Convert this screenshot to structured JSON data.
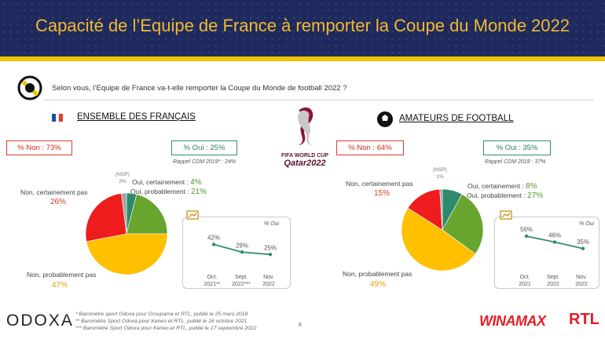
{
  "header": {
    "title": "Capacité de l’Equipe de France à remporter la Coupe du Monde 2022"
  },
  "question": "Selon vous, l’Equipe de France va-t-elle remporter la Coupe du Monde de football 2022 ?",
  "logo_text": "FIFA WORLD CUP\nQatar2022",
  "panels": [
    {
      "title": "ENSEMBLE DES FRANÇAIS",
      "non_box": "% Non : 73%",
      "oui_box": "% Oui : 25%",
      "rappel": "Rappel CDM 2018* : 24%",
      "nsp_label": "(NSP)",
      "nsp_value": "2%",
      "cert_oui_label": "Oui, certainement : ",
      "cert_oui_value": "4%",
      "prob_oui_label": "Oui, probablement : ",
      "prob_oui_value": "21%",
      "cert_non_label": "Non, certainement pas",
      "cert_non_value": "26%",
      "prob_non_label": "Non, probablement pas",
      "prob_non_value": "47%",
      "trend_legend": "% Oui",
      "trend_ticks": [
        [
          "Oct.",
          "2021**"
        ],
        [
          "Sept.",
          "2022***"
        ],
        [
          "Nov.",
          "2022"
        ]
      ],
      "trend_labels": [
        "42%",
        "29%",
        "25%"
      ]
    },
    {
      "title": "AMATEURS DE FOOTBALL",
      "non_box": "% Non : 64%",
      "oui_box": "% Oui : 35%",
      "rappel": "Rappel CDM 2018 : 37%",
      "nsp_label": "(NSP)",
      "nsp_value": "1%",
      "cert_oui_label": "Oui, certainement : ",
      "cert_oui_value": "8%",
      "prob_oui_label": "Oui, probablement : ",
      "prob_oui_value": "27%",
      "cert_non_label": "Non, certainement pas",
      "cert_non_value": "15%",
      "prob_non_label": "Non, probablement pas",
      "prob_non_value": "49%",
      "trend_legend": "% Oui",
      "trend_ticks": [
        [
          "Oct.",
          "2021"
        ],
        [
          "Sept.",
          "2022"
        ],
        [
          "Nov.",
          "2022"
        ]
      ],
      "trend_labels": [
        "56%",
        "46%",
        "35%"
      ]
    }
  ],
  "chart_data": [
    {
      "type": "pie",
      "categories": [
        "Oui, certainement",
        "Oui, probablement",
        "Non, probablement pas",
        "Non, certainement pas",
        "(NSP)"
      ],
      "values": [
        4,
        21,
        47,
        26,
        2
      ],
      "colors": [
        "#2f8a6d",
        "#67a52f",
        "#ffc000",
        "#ee1c1c",
        "#9aa7a6"
      ]
    },
    {
      "type": "line",
      "categories": [
        "Oct. 2021**",
        "Sept. 2022***",
        "Nov. 2022"
      ],
      "values": [
        42,
        29,
        25
      ],
      "color": "#2f8e6e",
      "legend": "% Oui"
    },
    {
      "type": "pie",
      "categories": [
        "Oui, certainement",
        "Oui, probablement",
        "Non, probablement pas",
        "Non, certainement pas",
        "(NSP)"
      ],
      "values": [
        8,
        27,
        49,
        15,
        1
      ],
      "colors": [
        "#2f8a6d",
        "#67a52f",
        "#ffc000",
        "#ee1c1c",
        "#9aa7a6"
      ]
    },
    {
      "type": "line",
      "categories": [
        "Oct. 2021",
        "Sept. 2022",
        "Nov. 2022"
      ],
      "values": [
        56,
        46,
        35
      ],
      "color": "#2f8e6e",
      "legend": "% Oui"
    }
  ],
  "footer": {
    "brand": "ODOXA",
    "notes": [
      "* Baromètre sport Odoxa pour Groupama et RTL, publié le 25 mars 2018",
      "** Baromètre Sport Odoxa pour Keneo et RTL, publié le 16 octobre 2021",
      "*** Baromètre Sport Odoxa pour Keneo et RTL, publié le 17 septembre 2022"
    ],
    "page": "8",
    "sponsor1": "WINAMAX",
    "sponsor2": "RTL"
  }
}
